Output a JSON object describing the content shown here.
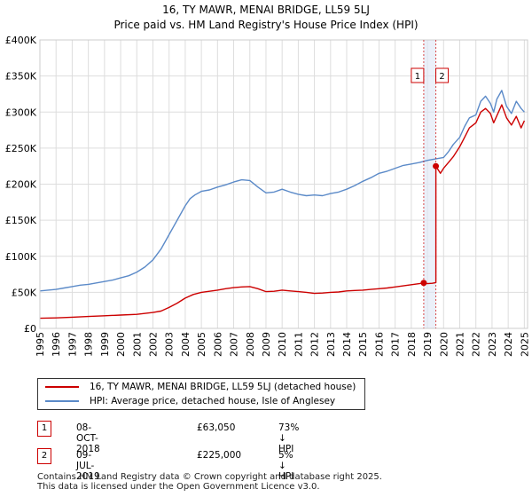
{
  "title_line1": "16, TY MAWR, MENAI BRIDGE, LL59 5LJ",
  "title_line2": "Price paid vs. HM Land Registry's House Price Index (HPI)",
  "chart_data": {
    "type": "line",
    "xlim": [
      1995,
      2025.2
    ],
    "ylim": [
      0,
      400000
    ],
    "grid": true,
    "y_ticks": [
      0,
      50000,
      100000,
      150000,
      200000,
      250000,
      300000,
      350000,
      400000
    ],
    "y_tick_labels": [
      "£0",
      "£50K",
      "£100K",
      "£150K",
      "£200K",
      "£250K",
      "£300K",
      "£350K",
      "£400K"
    ],
    "x_ticks": [
      1995,
      1996,
      1997,
      1998,
      1999,
      2000,
      2001,
      2002,
      2003,
      2004,
      2005,
      2006,
      2007,
      2008,
      2009,
      2010,
      2011,
      2012,
      2013,
      2014,
      2015,
      2016,
      2017,
      2018,
      2019,
      2020,
      2021,
      2022,
      2023,
      2024,
      2025
    ],
    "x_tick_labels": [
      "1995",
      "1996",
      "1997",
      "1998",
      "1999",
      "2000",
      "2001",
      "2002",
      "2003",
      "2004",
      "2005",
      "2006",
      "2007",
      "2008",
      "2009",
      "2010",
      "2011",
      "2012",
      "2013",
      "2014",
      "2015",
      "2016",
      "2017",
      "2018",
      "2019",
      "2020",
      "2021",
      "2022",
      "2023",
      "2024",
      "2025"
    ],
    "series": [
      {
        "name": "16, TY MAWR, MENAI BRIDGE, LL59 5LJ (detached house)",
        "color": "#cc0000",
        "x": [
          1995.0,
          1996.0,
          1997.0,
          1998.0,
          1999.0,
          2000.0,
          2001.0,
          2002.0,
          2002.5,
          2003.0,
          2003.5,
          2004.0,
          2004.5,
          2005.0,
          2005.5,
          2006.0,
          2006.5,
          2007.0,
          2007.5,
          2008.0,
          2008.5,
          2009.0,
          2009.5,
          2010.0,
          2010.5,
          2011.0,
          2011.5,
          2012.0,
          2012.5,
          2013.0,
          2013.5,
          2014.0,
          2014.5,
          2015.0,
          2015.5,
          2016.0,
          2016.5,
          2017.0,
          2017.5,
          2018.0,
          2018.5,
          2018.77,
          2019.0,
          2019.3,
          2019.52,
          2019.52,
          2019.8,
          2020.0,
          2020.3,
          2020.6,
          2021.0,
          2021.3,
          2021.6,
          2022.0,
          2022.3,
          2022.6,
          2022.9,
          2023.1,
          2023.3,
          2023.6,
          2023.9,
          2024.2,
          2024.5,
          2024.8,
          2025.0
        ],
        "y": [
          14000,
          14500,
          15500,
          16500,
          17500,
          18500,
          19500,
          22000,
          24000,
          29000,
          35000,
          42000,
          47000,
          50000,
          51500,
          53000,
          55000,
          56500,
          57500,
          58000,
          55000,
          51000,
          51500,
          53000,
          52000,
          51000,
          50000,
          48500,
          49000,
          50000,
          50500,
          52000,
          52500,
          53000,
          54000,
          55000,
          56000,
          57500,
          59000,
          60500,
          62000,
          63050,
          62000,
          62500,
          63500,
          225000,
          215000,
          222000,
          230000,
          238000,
          252000,
          265000,
          278000,
          285000,
          300000,
          305000,
          298000,
          285000,
          295000,
          310000,
          292000,
          282000,
          294000,
          278000,
          288000
        ]
      },
      {
        "name": "HPI: Average price, detached house, Isle of Anglesey",
        "color": "#5b8ac8",
        "x": [
          1995.0,
          1995.5,
          1996.0,
          1996.5,
          1997.0,
          1997.5,
          1998.0,
          1998.5,
          1999.0,
          1999.5,
          2000.0,
          2000.5,
          2001.0,
          2001.5,
          2002.0,
          2002.5,
          2003.0,
          2003.5,
          2004.0,
          2004.3,
          2004.6,
          2005.0,
          2005.5,
          2006.0,
          2006.5,
          2007.0,
          2007.5,
          2008.0,
          2008.5,
          2009.0,
          2009.5,
          2010.0,
          2010.5,
          2011.0,
          2011.5,
          2012.0,
          2012.5,
          2013.0,
          2013.5,
          2014.0,
          2014.5,
          2015.0,
          2015.5,
          2016.0,
          2016.5,
          2017.0,
          2017.5,
          2018.0,
          2018.5,
          2019.0,
          2019.5,
          2020.0,
          2020.3,
          2020.6,
          2021.0,
          2021.3,
          2021.6,
          2022.0,
          2022.3,
          2022.6,
          2022.9,
          2023.1,
          2023.3,
          2023.6,
          2023.9,
          2024.2,
          2024.5,
          2024.8,
          2025.0
        ],
        "y": [
          52000,
          53000,
          54000,
          56000,
          58000,
          60000,
          61000,
          63000,
          65000,
          67000,
          70000,
          73000,
          78000,
          85000,
          95000,
          110000,
          130000,
          150000,
          170000,
          180000,
          185000,
          190000,
          192000,
          196000,
          199000,
          203000,
          206000,
          205000,
          196000,
          188000,
          189000,
          193000,
          189000,
          186000,
          184000,
          185000,
          184000,
          187000,
          189000,
          193000,
          198000,
          204000,
          209000,
          215000,
          218000,
          222000,
          226000,
          228000,
          230000,
          233000,
          235000,
          237000,
          245000,
          255000,
          265000,
          280000,
          292000,
          296000,
          315000,
          322000,
          312000,
          300000,
          318000,
          330000,
          308000,
          298000,
          315000,
          305000,
          300000
        ]
      }
    ],
    "annotations": [
      {
        "label": "1",
        "x": 2018.77
      },
      {
        "label": "2",
        "x": 2019.52
      }
    ]
  },
  "legend": {
    "items": [
      {
        "label": "16, TY MAWR, MENAI BRIDGE, LL59 5LJ (detached house)",
        "color": "#cc0000"
      },
      {
        "label": "HPI: Average price, detached house, Isle of Anglesey",
        "color": "#5b8ac8"
      }
    ]
  },
  "transactions": [
    {
      "num": "1",
      "date": "08-OCT-2018",
      "price": "£63,050",
      "hpi": "73% ↓ HPI"
    },
    {
      "num": "2",
      "date": "09-JUL-2019",
      "price": "£225,000",
      "hpi": "5% ↓ HPI"
    }
  ],
  "footer": {
    "line1": "Contains HM Land Registry data © Crown copyright and database right 2025.",
    "line2": "This data is licensed under the Open Government Licence v3.0."
  }
}
